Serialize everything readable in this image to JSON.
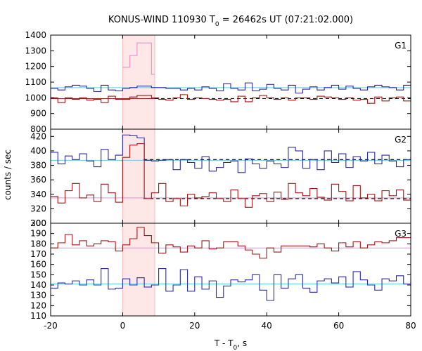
{
  "chart_data": {
    "type": "line",
    "title": {
      "main": "KONUS-WIND 110930 T",
      "sub": "0",
      "tail": " = 26462s UT (07:21:02.000)"
    },
    "xlabel": {
      "main": "T - T",
      "sub": "0",
      "tail": ", s"
    },
    "ylabel": "counts / sec",
    "xlim": [
      -20,
      80
    ],
    "xticks": [
      -20,
      0,
      20,
      40,
      60,
      80
    ],
    "highlight_interval": [
      0,
      8.9
    ],
    "colors": {
      "highlight": "#fde7e7",
      "blue": "#2a2aa6",
      "red": "#a01616",
      "cyan_fit": "#66cce0",
      "pink_fit": "#f08ccd",
      "dashed_fit": "#000000",
      "frame": "#000000"
    },
    "panels": [
      {
        "label": "G1",
        "ylim": [
          800,
          1400
        ],
        "yticks": [
          800,
          900,
          1000,
          1100,
          1200,
          1300,
          1400
        ],
        "series": [
          {
            "color_key": "blue",
            "x": [
              -20,
              -18,
              -16,
              -14,
              -12,
              -10,
              -8,
              -6,
              -4,
              -2,
              0,
              2,
              4,
              6,
              8,
              10,
              12,
              14,
              16,
              18,
              20,
              22,
              24,
              26,
              28,
              30,
              32,
              34,
              36,
              38,
              40,
              42,
              44,
              46,
              48,
              50,
              52,
              54,
              56,
              58,
              60,
              62,
              64,
              66,
              68,
              70,
              72,
              74,
              76,
              78,
              80
            ],
            "y": [
              1060,
              1050,
              1070,
              1080,
              1075,
              1060,
              1040,
              1080,
              1050,
              1045,
              1060,
              1065,
              1075,
              1075,
              1065,
              1065,
              1060,
              1060,
              1050,
              1060,
              1050,
              1070,
              1060,
              1045,
              1090,
              1060,
              1050,
              1095,
              1045,
              1055,
              1085,
              1060,
              1050,
              1080,
              1030,
              1055,
              1070,
              1050,
              1065,
              1080,
              1055,
              1075,
              1060,
              1050,
              1070,
              1080,
              1070,
              1065,
              1050,
              1080,
              1090
            ]
          },
          {
            "color_key": "red",
            "x": [
              -20,
              -18,
              -16,
              -14,
              -12,
              -10,
              -8,
              -6,
              -4,
              -2,
              0,
              2,
              4,
              6,
              8,
              10,
              12,
              14,
              16,
              18,
              20,
              22,
              24,
              26,
              28,
              30,
              32,
              34,
              36,
              38,
              40,
              42,
              44,
              46,
              48,
              50,
              52,
              54,
              56,
              58,
              60,
              62,
              64,
              66,
              68,
              70,
              72,
              74,
              76,
              78,
              80
            ],
            "y": [
              1000,
              970,
              1000,
              990,
              1000,
              985,
              990,
              970,
              1010,
              990,
              990,
              1005,
              1015,
              1015,
              1000,
              990,
              985,
              1000,
              1020,
              990,
              1000,
              995,
              990,
              985,
              990,
              975,
              1010,
              975,
              1000,
              1015,
              1000,
              990,
              1000,
              985,
              1000,
              1000,
              990,
              1010,
              1005,
              1000,
              990,
              1000,
              985,
              990,
              965,
              1005,
              980,
              1000,
              1005,
              980,
              975
            ]
          },
          {
            "color_key": "pink_fit",
            "x": [
              0,
              2,
              4,
              6,
              8,
              8.9
            ],
            "y": [
              1195,
              1270,
              1350,
              1350,
              1150,
              1150
            ]
          }
        ],
        "fits": [
          {
            "color_key": "cyan_fit",
            "y": 1065,
            "x_range": [
              -20,
              80
            ],
            "dashed": false
          },
          {
            "color_key": "dashed_fit",
            "y": 995,
            "x_range": [
              8.9,
              80
            ],
            "dashed": true
          },
          {
            "color_key": "red",
            "y": 995,
            "x_range": [
              -20,
              8.9
            ],
            "dashed": false
          }
        ]
      },
      {
        "label": "G2",
        "ylim": [
          300,
          430
        ],
        "yticks": [
          300,
          320,
          340,
          360,
          380,
          400,
          420
        ],
        "series": [
          {
            "color_key": "blue",
            "x": [
              -20,
              -18,
              -16,
              -14,
              -12,
              -10,
              -8,
              -6,
              -4,
              -2,
              0,
              2,
              4,
              6,
              8,
              10,
              12,
              14,
              16,
              18,
              20,
              22,
              24,
              26,
              28,
              30,
              32,
              34,
              36,
              38,
              40,
              42,
              44,
              46,
              48,
              50,
              52,
              54,
              56,
              58,
              60,
              62,
              64,
              66,
              68,
              70,
              72,
              74,
              76,
              78,
              80
            ],
            "y": [
              398,
              382,
              393,
              388,
              396,
              386,
              378,
              402,
              388,
              394,
              422,
              421,
              418,
              387,
              386,
              387,
              388,
              374,
              388,
              384,
              376,
              392,
              372,
              377,
              384,
              386,
              370,
              389,
              382,
              376,
              386,
              382,
              377,
              405,
              400,
              376,
              388,
              374,
              400,
              384,
              396,
              377,
              392,
              386,
              398,
              382,
              394,
              386,
              378,
              388,
              392
            ]
          },
          {
            "color_key": "red",
            "x": [
              -20,
              -18,
              -16,
              -14,
              -12,
              -10,
              -8,
              -6,
              -4,
              -2,
              0,
              2,
              4,
              6,
              8,
              10,
              12,
              14,
              16,
              18,
              20,
              22,
              24,
              26,
              28,
              30,
              32,
              34,
              36,
              38,
              40,
              42,
              44,
              46,
              48,
              50,
              52,
              54,
              56,
              58,
              60,
              62,
              64,
              66,
              68,
              70,
              72,
              74,
              76,
              78,
              80
            ],
            "y": [
              337,
              328,
              345,
              355,
              335,
              339,
              330,
              354,
              342,
              329,
              391,
              408,
              410,
              334,
              342,
              355,
              330,
              334,
              324,
              340,
              335,
              337,
              342,
              334,
              330,
              346,
              334,
              322,
              338,
              341,
              330,
              343,
              333,
              355,
              342,
              338,
              348,
              336,
              332,
              354,
              344,
              331,
              352,
              335,
              340,
              331,
              345,
              338,
              346,
              332,
              340
            ]
          }
        ],
        "fits": [
          {
            "color_key": "cyan_fit",
            "y": 387,
            "x_range": [
              -20,
              80
            ],
            "dashed": false
          },
          {
            "color_key": "pink_fit",
            "y": 335,
            "x_range": [
              -20,
              80
            ],
            "dashed": false
          },
          {
            "color_key": "dashed_fit",
            "y": 388,
            "x_range": [
              5.8,
              80
            ],
            "dashed": true
          },
          {
            "color_key": "dashed_fit",
            "y": 334,
            "x_range": [
              5.8,
              80
            ],
            "dashed": true
          }
        ]
      },
      {
        "label": "G3",
        "ylim": [
          110,
          200
        ],
        "yticks": [
          110,
          120,
          130,
          140,
          150,
          160,
          170,
          180,
          190,
          200
        ],
        "series": [
          {
            "color_key": "red",
            "x": [
              -20,
              -18,
              -16,
              -14,
              -12,
              -10,
              -8,
              -6,
              -4,
              -2,
              0,
              2,
              4,
              6,
              8,
              10,
              12,
              14,
              16,
              18,
              20,
              22,
              24,
              26,
              28,
              30,
              32,
              34,
              36,
              38,
              40,
              42,
              44,
              46,
              48,
              50,
              52,
              54,
              56,
              58,
              60,
              62,
              64,
              66,
              68,
              70,
              72,
              74,
              76,
              78,
              80
            ],
            "y": [
              176,
              181,
              189,
              179,
              183,
              178,
              180,
              183,
              182,
              173,
              179,
              185,
              196,
              188,
              181,
              171,
              179,
              177,
              172,
              178,
              176,
              183,
              175,
              176,
              182,
              182,
              178,
              174,
              170,
              166,
              176,
              172,
              178,
              178,
              178,
              178,
              177,
              180,
              176,
              173,
              181,
              177,
              182,
              176,
              179,
              182,
              181,
              183,
              186,
              186,
              191
            ]
          },
          {
            "color_key": "blue",
            "x": [
              -20,
              -18,
              -16,
              -14,
              -12,
              -10,
              -8,
              -6,
              -4,
              -2,
              0,
              2,
              4,
              6,
              8,
              10,
              12,
              14,
              16,
              18,
              20,
              22,
              24,
              26,
              28,
              30,
              32,
              34,
              36,
              38,
              40,
              42,
              44,
              46,
              48,
              50,
              52,
              54,
              56,
              58,
              60,
              62,
              64,
              66,
              68,
              70,
              72,
              74,
              76,
              78,
              80
            ],
            "y": [
              137,
              142,
              141,
              144,
              140,
              145,
              140,
              156,
              136,
              137,
              146,
              140,
              147,
              138,
              140,
              156,
              134,
              140,
              155,
              134,
              148,
              136,
              144,
              128,
              139,
              145,
              143,
              145,
              150,
              135,
              125,
              150,
              137,
              146,
              150,
              137,
              133,
              144,
              146,
              142,
              148,
              138,
              153,
              145,
              140,
              135,
              146,
              144,
              149,
              141,
              146
            ]
          }
        ],
        "fits": [
          {
            "color_key": "pink_fit",
            "y": 176,
            "x_range": [
              -20,
              80
            ],
            "dashed": false
          },
          {
            "color_key": "cyan_fit",
            "y": 141,
            "x_range": [
              -20,
              80
            ],
            "dashed": false
          }
        ]
      }
    ]
  }
}
